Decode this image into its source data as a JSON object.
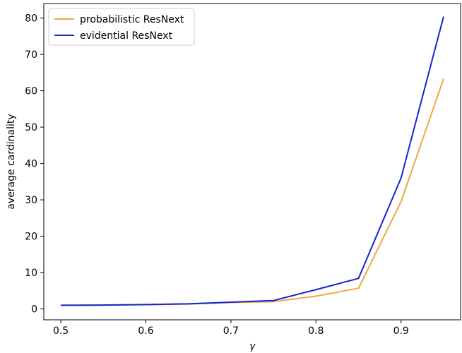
{
  "chart_data": {
    "type": "line",
    "title": "",
    "xlabel": "γ",
    "ylabel": "average cardinality",
    "xlim": [
      0.48,
      0.97
    ],
    "ylim": [
      -3,
      84
    ],
    "x_ticks": [
      0.5,
      0.6,
      0.7,
      0.8,
      0.9
    ],
    "x_tick_labels": [
      "0.5",
      "0.6",
      "0.7",
      "0.8",
      "0.9"
    ],
    "y_ticks": [
      0,
      10,
      20,
      30,
      40,
      50,
      60,
      70,
      80
    ],
    "y_tick_labels": [
      "0",
      "10",
      "20",
      "30",
      "40",
      "50",
      "60",
      "70",
      "80"
    ],
    "grid": false,
    "legend_position": "top-left",
    "x": [
      0.5,
      0.55,
      0.6,
      0.65,
      0.7,
      0.75,
      0.8,
      0.85,
      0.9,
      0.95
    ],
    "series": [
      {
        "name": "probabilistic ResNext",
        "color": "#f0a742",
        "values": [
          1.0,
          1.05,
          1.15,
          1.35,
          1.75,
          2.0,
          3.5,
          5.7,
          29.5,
          63.3
        ]
      },
      {
        "name": "evidential ResNext",
        "color": "#1224d4",
        "values": [
          1.0,
          1.05,
          1.2,
          1.4,
          1.85,
          2.3,
          5.3,
          8.4,
          36.0,
          80.4
        ]
      }
    ]
  }
}
